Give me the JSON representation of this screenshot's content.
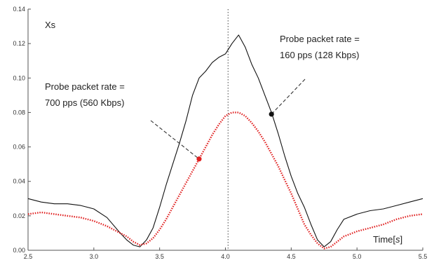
{
  "chart_data": {
    "type": "line",
    "xlabel": "Time",
    "xlabel_unit": "s",
    "ylabel": "Xs",
    "xlim": [
      2.5,
      5.5
    ],
    "ylim": [
      0.0,
      0.14
    ],
    "x_ticks": [
      "2.5",
      "3.0",
      "3.5",
      "4.0",
      "4.5",
      "5.0",
      "5.5"
    ],
    "y_ticks": [
      "0.00",
      "0.02",
      "0.04",
      "0.06",
      "0.08",
      "0.10",
      "0.12",
      "0.14"
    ],
    "grid": false,
    "legend": "none",
    "vertical_reference_x": 4.02,
    "series": [
      {
        "style": "solid",
        "color": "#111111",
        "x": [
          2.5,
          2.6,
          2.7,
          2.8,
          2.9,
          3.0,
          3.1,
          3.2,
          3.25,
          3.3,
          3.35,
          3.4,
          3.45,
          3.5,
          3.55,
          3.6,
          3.65,
          3.7,
          3.75,
          3.8,
          3.85,
          3.9,
          3.95,
          4.0,
          4.05,
          4.1,
          4.15,
          4.2,
          4.25,
          4.3,
          4.35,
          4.4,
          4.45,
          4.5,
          4.55,
          4.6,
          4.65,
          4.7,
          4.75,
          4.8,
          4.85,
          4.9,
          5.0,
          5.1,
          5.2,
          5.3,
          5.4,
          5.5
        ],
        "y": [
          0.03,
          0.028,
          0.027,
          0.027,
          0.026,
          0.024,
          0.019,
          0.01,
          0.006,
          0.003,
          0.002,
          0.006,
          0.013,
          0.025,
          0.038,
          0.05,
          0.062,
          0.075,
          0.09,
          0.1,
          0.104,
          0.109,
          0.112,
          0.114,
          0.12,
          0.125,
          0.118,
          0.108,
          0.1,
          0.09,
          0.08,
          0.068,
          0.055,
          0.043,
          0.033,
          0.025,
          0.015,
          0.006,
          0.002,
          0.005,
          0.012,
          0.018,
          0.021,
          0.023,
          0.024,
          0.026,
          0.028,
          0.03
        ]
      },
      {
        "style": "dotted",
        "color": "#e02020",
        "x": [
          2.5,
          2.6,
          2.7,
          2.8,
          2.9,
          3.0,
          3.1,
          3.2,
          3.25,
          3.3,
          3.35,
          3.4,
          3.45,
          3.5,
          3.55,
          3.6,
          3.65,
          3.7,
          3.75,
          3.8,
          3.85,
          3.9,
          3.95,
          4.0,
          4.05,
          4.1,
          4.15,
          4.2,
          4.25,
          4.3,
          4.35,
          4.4,
          4.45,
          4.5,
          4.55,
          4.6,
          4.65,
          4.7,
          4.75,
          4.8,
          4.85,
          4.9,
          5.0,
          5.1,
          5.2,
          5.3,
          5.4,
          5.5
        ],
        "y": [
          0.021,
          0.022,
          0.021,
          0.02,
          0.019,
          0.017,
          0.014,
          0.01,
          0.008,
          0.005,
          0.003,
          0.004,
          0.007,
          0.012,
          0.018,
          0.025,
          0.032,
          0.039,
          0.046,
          0.053,
          0.06,
          0.067,
          0.073,
          0.078,
          0.08,
          0.08,
          0.078,
          0.074,
          0.069,
          0.063,
          0.056,
          0.049,
          0.041,
          0.033,
          0.024,
          0.015,
          0.009,
          0.004,
          0.001,
          0.002,
          0.005,
          0.008,
          0.011,
          0.013,
          0.015,
          0.018,
          0.02,
          0.021
        ]
      }
    ],
    "markers": [
      {
        "x": 3.8,
        "y": 0.053,
        "color": "#e02020"
      },
      {
        "x": 4.35,
        "y": 0.079,
        "color": "#111111"
      }
    ],
    "annotations": [
      {
        "lines": [
          "Probe packet rate  =",
          "700 pps (560 Kbps)"
        ],
        "leader_to": {
          "x": 3.8,
          "y": 0.053
        }
      },
      {
        "lines": [
          "Probe packet rate  =",
          "160 pps (128 Kbps)"
        ],
        "leader_to": {
          "x": 4.35,
          "y": 0.079
        }
      }
    ]
  }
}
